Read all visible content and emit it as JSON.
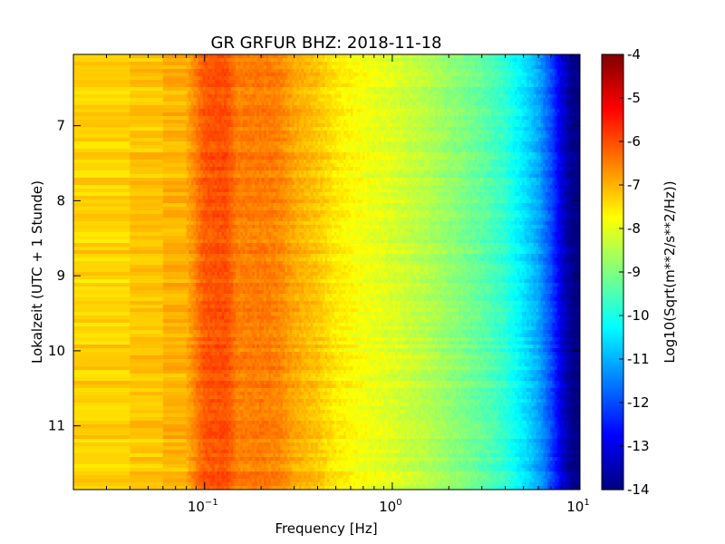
{
  "chart_data": {
    "type": "heatmap",
    "title": "GR GRFUR BHZ: 2018-11-18",
    "xlabel": "Frequency [Hz]",
    "ylabel": "Lokalzeit (UTC + 1 Stunde)",
    "x_scale": "log",
    "xlim": [
      0.02,
      10
    ],
    "ylim": [
      11.85,
      6.05
    ],
    "y_inverted": true,
    "x_ticks": [
      {
        "value": 0.1,
        "base": "10",
        "exp": "−1"
      },
      {
        "value": 1,
        "base": "10",
        "exp": "0"
      },
      {
        "value": 10,
        "base": "10",
        "exp": "1"
      }
    ],
    "y_ticks": [
      {
        "value": 7,
        "label": "7"
      },
      {
        "value": 8,
        "label": "8"
      },
      {
        "value": 9,
        "label": "9"
      },
      {
        "value": 10,
        "label": "10"
      },
      {
        "value": 11,
        "label": "11"
      }
    ],
    "colorbar": {
      "label": "Log10(Sqrt(m**2/s**2/Hz))",
      "colormap": "jet",
      "range": [
        -14,
        -4
      ],
      "ticks": [
        {
          "value": -4,
          "label": "-4"
        },
        {
          "value": -5,
          "label": "-5"
        },
        {
          "value": -6,
          "label": "-6"
        },
        {
          "value": -7,
          "label": "-7"
        },
        {
          "value": -8,
          "label": "-8"
        },
        {
          "value": -9,
          "label": "-9"
        },
        {
          "value": -10,
          "label": "-10"
        },
        {
          "value": -11,
          "label": "-11"
        },
        {
          "value": -12,
          "label": "-12"
        },
        {
          "value": -13,
          "label": "-13"
        },
        {
          "value": -14,
          "label": "-14"
        }
      ]
    },
    "frequency_profile": {
      "description_free": true,
      "frequency_hz": [
        0.02,
        0.04,
        0.06,
        0.08,
        0.1,
        0.13,
        0.15,
        0.2,
        0.25,
        0.3,
        0.4,
        0.5,
        0.7,
        1.0,
        1.5,
        2.0,
        3.0,
        4.0,
        5.0,
        6.0,
        7.0,
        8.0,
        9.0,
        10.0
      ],
      "value": [
        -7.35,
        -7.3,
        -7.05,
        -6.95,
        -6.1,
        -6.0,
        -6.5,
        -6.45,
        -6.55,
        -6.9,
        -7.2,
        -7.55,
        -7.85,
        -8.1,
        -8.45,
        -8.8,
        -9.3,
        -9.8,
        -10.5,
        -11.1,
        -12.0,
        -13.1,
        -13.9,
        -14.0
      ]
    },
    "grid": false,
    "legend": "none"
  }
}
